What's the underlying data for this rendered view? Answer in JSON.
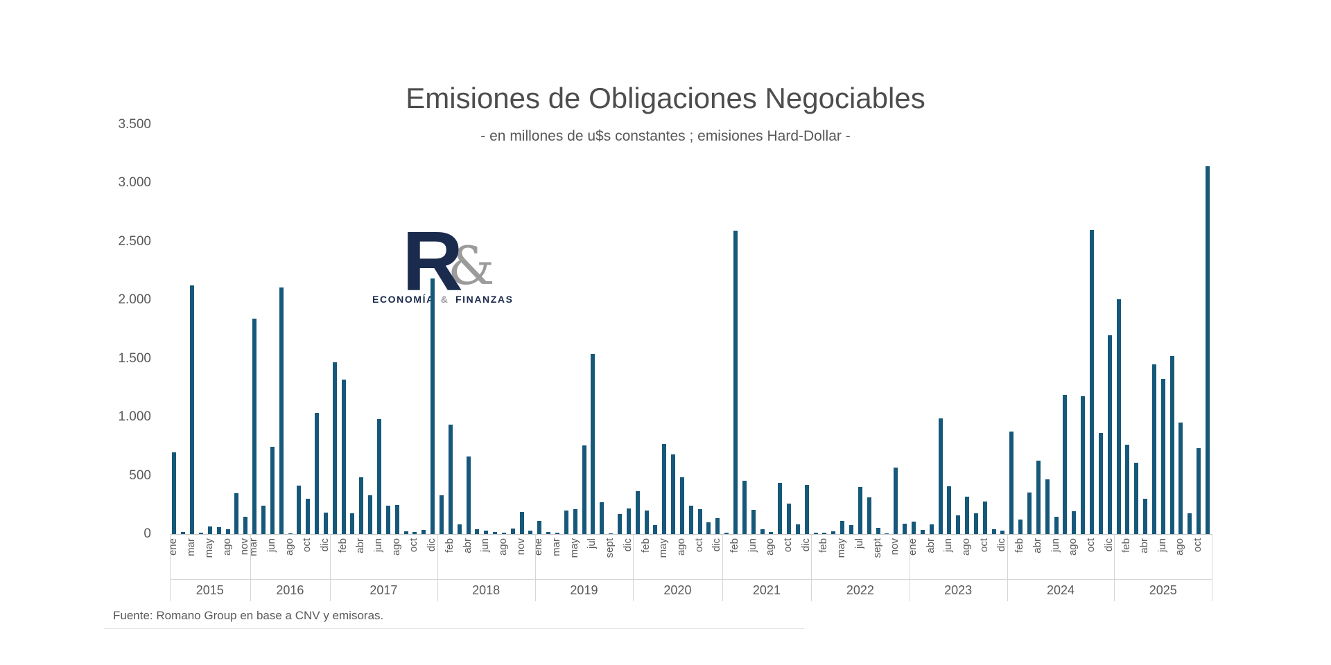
{
  "title": "Emisiones de Obligaciones Negociables",
  "subtitle": "- en millones de u$s constantes ; emisiones Hard-Dollar -",
  "footer": {
    "source": "Fuente: Romano Group en base a CNV y emisoras."
  },
  "logo": {
    "letter": "R",
    "ampersand": "&",
    "text_left": "ECONOMÍA",
    "text_amp": "&",
    "text_right": "FINANZAS",
    "navy": "#1b2b4d",
    "gray": "#9b9b9b"
  },
  "colors": {
    "bar": "#16587a",
    "axis_text": "#595959",
    "grid_line": "#d6d6d6"
  },
  "chart_data": {
    "type": "bar",
    "title": "Emisiones de Obligaciones Negociables",
    "subtitle": "- en millones de u$s constantes ; emisiones Hard-Dollar -",
    "xlabel": "",
    "ylabel": "",
    "grid": false,
    "legend": false,
    "y_axis": {
      "min": 0,
      "max": 3500,
      "step": 500,
      "tick_labels": [
        "0",
        "500",
        "1.000",
        "1.500",
        "2.000",
        "2.500",
        "3.000",
        "3.500"
      ]
    },
    "years": [
      {
        "year": "2015",
        "bars": [
          {
            "label": "ene",
            "value": 700
          },
          {
            "label": "",
            "value": 20
          },
          {
            "label": "mar",
            "value": 2125
          },
          {
            "label": "",
            "value": 10
          },
          {
            "label": "may",
            "value": 65
          },
          {
            "label": "",
            "value": 60
          },
          {
            "label": "ago",
            "value": 40
          },
          {
            "label": "",
            "value": 350
          },
          {
            "label": "nov",
            "value": 150
          }
        ]
      },
      {
        "year": "2016",
        "bars": [
          {
            "label": "mar",
            "value": 1840
          },
          {
            "label": "",
            "value": 240
          },
          {
            "label": "jun",
            "value": 745
          },
          {
            "label": "",
            "value": 2105
          },
          {
            "label": "ago",
            "value": 5
          },
          {
            "label": "",
            "value": 415
          },
          {
            "label": "oct",
            "value": 300
          },
          {
            "label": "",
            "value": 1035
          },
          {
            "label": "dic",
            "value": 185
          }
        ]
      },
      {
        "year": "2017",
        "bars": [
          {
            "label": "",
            "value": 1465
          },
          {
            "label": "feb",
            "value": 1320
          },
          {
            "label": "",
            "value": 175
          },
          {
            "label": "abr",
            "value": 485
          },
          {
            "label": "",
            "value": 330
          },
          {
            "label": "jun",
            "value": 985
          },
          {
            "label": "",
            "value": 240
          },
          {
            "label": "ago",
            "value": 250
          },
          {
            "label": "",
            "value": 25
          },
          {
            "label": "oct",
            "value": 20
          },
          {
            "label": "",
            "value": 35
          },
          {
            "label": "dic",
            "value": 2185
          }
        ]
      },
      {
        "year": "2018",
        "bars": [
          {
            "label": "",
            "value": 330
          },
          {
            "label": "feb",
            "value": 935
          },
          {
            "label": "",
            "value": 85
          },
          {
            "label": "abr",
            "value": 660
          },
          {
            "label": "",
            "value": 40
          },
          {
            "label": "jun",
            "value": 30
          },
          {
            "label": "",
            "value": 15
          },
          {
            "label": "ago",
            "value": 10
          },
          {
            "label": "",
            "value": 45
          },
          {
            "label": "nov",
            "value": 190
          },
          {
            "label": "",
            "value": 30
          }
        ]
      },
      {
        "year": "2019",
        "bars": [
          {
            "label": "ene",
            "value": 110
          },
          {
            "label": "",
            "value": 15
          },
          {
            "label": "mar",
            "value": 10
          },
          {
            "label": "",
            "value": 200
          },
          {
            "label": "may",
            "value": 215
          },
          {
            "label": "",
            "value": 760
          },
          {
            "label": "jul",
            "value": 1540
          },
          {
            "label": "",
            "value": 275
          },
          {
            "label": "sept",
            "value": 5
          },
          {
            "label": "",
            "value": 170
          },
          {
            "label": "dic",
            "value": 220
          }
        ]
      },
      {
        "year": "2020",
        "bars": [
          {
            "label": "",
            "value": 365
          },
          {
            "label": "feb",
            "value": 200
          },
          {
            "label": "",
            "value": 75
          },
          {
            "label": "may",
            "value": 770
          },
          {
            "label": "",
            "value": 680
          },
          {
            "label": "ago",
            "value": 485
          },
          {
            "label": "",
            "value": 245
          },
          {
            "label": "oct",
            "value": 215
          },
          {
            "label": "",
            "value": 100
          },
          {
            "label": "dic",
            "value": 135
          }
        ]
      },
      {
        "year": "2021",
        "bars": [
          {
            "label": "",
            "value": 10
          },
          {
            "label": "feb",
            "value": 2590
          },
          {
            "label": "",
            "value": 455
          },
          {
            "label": "jun",
            "value": 210
          },
          {
            "label": "",
            "value": 40
          },
          {
            "label": "ago",
            "value": 15
          },
          {
            "label": "",
            "value": 435
          },
          {
            "label": "oct",
            "value": 260
          },
          {
            "label": "",
            "value": 80
          },
          {
            "label": "dic",
            "value": 420
          }
        ]
      },
      {
        "year": "2022",
        "bars": [
          {
            "label": "",
            "value": 10
          },
          {
            "label": "feb",
            "value": 10
          },
          {
            "label": "",
            "value": 25
          },
          {
            "label": "may",
            "value": 110
          },
          {
            "label": "",
            "value": 75
          },
          {
            "label": "jul",
            "value": 400
          },
          {
            "label": "",
            "value": 315
          },
          {
            "label": "sept",
            "value": 55
          },
          {
            "label": "",
            "value": 5
          },
          {
            "label": "nov",
            "value": 570
          },
          {
            "label": "",
            "value": 90
          }
        ]
      },
      {
        "year": "2023",
        "bars": [
          {
            "label": "ene",
            "value": 105
          },
          {
            "label": "",
            "value": 35
          },
          {
            "label": "abr",
            "value": 80
          },
          {
            "label": "",
            "value": 990
          },
          {
            "label": "jun",
            "value": 410
          },
          {
            "label": "",
            "value": 160
          },
          {
            "label": "ago",
            "value": 320
          },
          {
            "label": "",
            "value": 180
          },
          {
            "label": "oct",
            "value": 280
          },
          {
            "label": "",
            "value": 40
          },
          {
            "label": "dic",
            "value": 30
          }
        ]
      },
      {
        "year": "2024",
        "bars": [
          {
            "label": "",
            "value": 875
          },
          {
            "label": "feb",
            "value": 125
          },
          {
            "label": "",
            "value": 355
          },
          {
            "label": "abr",
            "value": 630
          },
          {
            "label": "",
            "value": 465
          },
          {
            "label": "jun",
            "value": 145
          },
          {
            "label": "",
            "value": 1190
          },
          {
            "label": "ago",
            "value": 195
          },
          {
            "label": "",
            "value": 1180
          },
          {
            "label": "oct",
            "value": 2600
          },
          {
            "label": "",
            "value": 865
          },
          {
            "label": "dic",
            "value": 1700
          }
        ]
      },
      {
        "year": "2025",
        "bars": [
          {
            "label": "",
            "value": 2005
          },
          {
            "label": "feb",
            "value": 765
          },
          {
            "label": "",
            "value": 610
          },
          {
            "label": "abr",
            "value": 300
          },
          {
            "label": "",
            "value": 1450
          },
          {
            "label": "jun",
            "value": 1325
          },
          {
            "label": "",
            "value": 1520
          },
          {
            "label": "ago",
            "value": 950
          },
          {
            "label": "",
            "value": 180
          },
          {
            "label": "oct",
            "value": 735
          },
          {
            "label": "",
            "value": 3140
          }
        ]
      }
    ]
  }
}
